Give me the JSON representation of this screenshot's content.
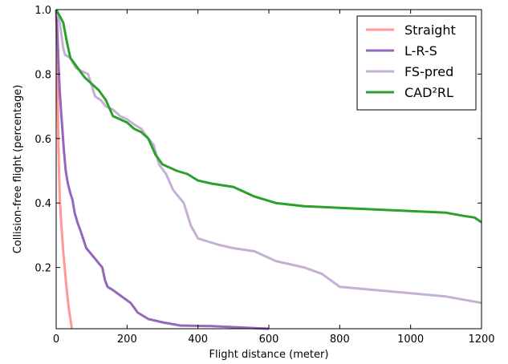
{
  "chart_data": {
    "type": "line",
    "xlabel": "Flight distance (meter)",
    "ylabel": "Collision-free flight (percentage)",
    "xlim": [
      0,
      1200
    ],
    "ylim": [
      0.01,
      1.0
    ],
    "xticks": [
      0,
      200,
      400,
      600,
      800,
      1000,
      1200
    ],
    "yticks": [
      0.2,
      0.4,
      0.6,
      0.8,
      1.0
    ],
    "xtick_labels": [
      "0",
      "200",
      "400",
      "600",
      "800",
      "1000",
      "1200"
    ],
    "ytick_labels": [
      "0.2",
      "0.4",
      "0.6",
      "0.8",
      "1.0"
    ],
    "grid": false,
    "legend_position": "top-right",
    "series": [
      {
        "name": "Straight",
        "color": "#ff9896",
        "points": [
          [
            0,
            1.0
          ],
          [
            2,
            0.9
          ],
          [
            4,
            0.75
          ],
          [
            6,
            0.6
          ],
          [
            8,
            0.5
          ],
          [
            10,
            0.42
          ],
          [
            13,
            0.36
          ],
          [
            16,
            0.31
          ],
          [
            20,
            0.25
          ],
          [
            24,
            0.2
          ],
          [
            28,
            0.15
          ],
          [
            32,
            0.11
          ],
          [
            36,
            0.07
          ],
          [
            40,
            0.04
          ],
          [
            43,
            0.02
          ],
          [
            44,
            0.01
          ]
        ]
      },
      {
        "name": "L-R-S",
        "color": "#9467bd",
        "points": [
          [
            0,
            1.0
          ],
          [
            3,
            0.94
          ],
          [
            5,
            0.88
          ],
          [
            7,
            0.82
          ],
          [
            10,
            0.75
          ],
          [
            14,
            0.68
          ],
          [
            18,
            0.62
          ],
          [
            22,
            0.56
          ],
          [
            27,
            0.5
          ],
          [
            33,
            0.46
          ],
          [
            40,
            0.43
          ],
          [
            46,
            0.41
          ],
          [
            52,
            0.37
          ],
          [
            60,
            0.34
          ],
          [
            70,
            0.31
          ],
          [
            85,
            0.26
          ],
          [
            100,
            0.24
          ],
          [
            115,
            0.22
          ],
          [
            130,
            0.2
          ],
          [
            138,
            0.16
          ],
          [
            145,
            0.14
          ],
          [
            160,
            0.13
          ],
          [
            185,
            0.11
          ],
          [
            210,
            0.09
          ],
          [
            230,
            0.06
          ],
          [
            260,
            0.04
          ],
          [
            300,
            0.03
          ],
          [
            350,
            0.02
          ],
          [
            440,
            0.018
          ],
          [
            560,
            0.012
          ],
          [
            600,
            0.01
          ]
        ]
      },
      {
        "name": "FS-pred",
        "color": "#c5b0d5",
        "points": [
          [
            0,
            1.0
          ],
          [
            10,
            0.96
          ],
          [
            15,
            0.92
          ],
          [
            20,
            0.88
          ],
          [
            25,
            0.86
          ],
          [
            40,
            0.85
          ],
          [
            55,
            0.82
          ],
          [
            70,
            0.81
          ],
          [
            90,
            0.8
          ],
          [
            110,
            0.73
          ],
          [
            125,
            0.72
          ],
          [
            140,
            0.7
          ],
          [
            160,
            0.69
          ],
          [
            180,
            0.67
          ],
          [
            200,
            0.66
          ],
          [
            225,
            0.64
          ],
          [
            240,
            0.63
          ],
          [
            260,
            0.6
          ],
          [
            275,
            0.58
          ],
          [
            290,
            0.52
          ],
          [
            310,
            0.49
          ],
          [
            330,
            0.44
          ],
          [
            360,
            0.4
          ],
          [
            380,
            0.33
          ],
          [
            400,
            0.29
          ],
          [
            430,
            0.28
          ],
          [
            460,
            0.27
          ],
          [
            500,
            0.26
          ],
          [
            560,
            0.25
          ],
          [
            620,
            0.22
          ],
          [
            700,
            0.2
          ],
          [
            750,
            0.18
          ],
          [
            800,
            0.14
          ],
          [
            900,
            0.13
          ],
          [
            1000,
            0.12
          ],
          [
            1100,
            0.11
          ],
          [
            1200,
            0.09
          ]
        ]
      },
      {
        "name": "CAD²RL",
        "color": "#2ca02c",
        "points": [
          [
            0,
            1.0
          ],
          [
            10,
            0.98
          ],
          [
            20,
            0.96
          ],
          [
            30,
            0.9
          ],
          [
            40,
            0.85
          ],
          [
            60,
            0.82
          ],
          [
            80,
            0.79
          ],
          [
            100,
            0.77
          ],
          [
            120,
            0.75
          ],
          [
            140,
            0.72
          ],
          [
            160,
            0.67
          ],
          [
            180,
            0.66
          ],
          [
            200,
            0.65
          ],
          [
            220,
            0.63
          ],
          [
            240,
            0.62
          ],
          [
            260,
            0.6
          ],
          [
            280,
            0.55
          ],
          [
            300,
            0.52
          ],
          [
            340,
            0.5
          ],
          [
            370,
            0.49
          ],
          [
            400,
            0.47
          ],
          [
            440,
            0.46
          ],
          [
            500,
            0.45
          ],
          [
            560,
            0.42
          ],
          [
            620,
            0.4
          ],
          [
            700,
            0.39
          ],
          [
            800,
            0.385
          ],
          [
            900,
            0.38
          ],
          [
            1000,
            0.375
          ],
          [
            1100,
            0.37
          ],
          [
            1150,
            0.36
          ],
          [
            1180,
            0.355
          ],
          [
            1200,
            0.34
          ]
        ]
      }
    ]
  }
}
